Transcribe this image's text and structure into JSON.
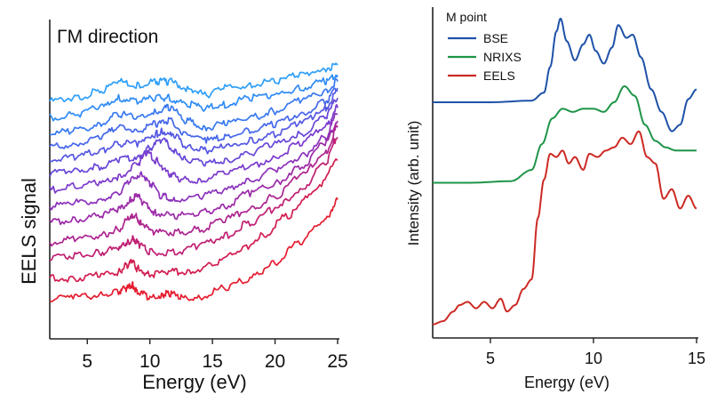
{
  "chart_data": [
    {
      "type": "line",
      "title": "ΓM direction",
      "xlabel": "Energy (eV)",
      "ylabel": "EELS signal",
      "xlim": [
        2,
        25
      ],
      "xticks": [
        5,
        10,
        15,
        20,
        25
      ],
      "yaxis_ticks_shown": false,
      "stacked_offset_curves": true,
      "colors": [
        "#2f9ff8",
        "#2f8cf5",
        "#3879f0",
        "#4467ea",
        "#5557e2",
        "#6848d8",
        "#7b3ccc",
        "#8c32bc",
        "#9c2aa8",
        "#ad2490",
        "#c01f72",
        "#d21d50",
        "#e51d30"
      ],
      "series": [
        {
          "x": [
            2,
            4,
            6,
            7.5,
            9,
            10.5,
            11.5,
            13,
            14.5,
            16,
            18,
            20,
            22,
            24,
            25
          ],
          "values": [
            70,
            71,
            73,
            76,
            75,
            76,
            76,
            74,
            72,
            74,
            75,
            76,
            78,
            80,
            81
          ]
        },
        {
          "x": [
            2,
            4,
            6,
            7.5,
            9,
            10.5,
            11.5,
            13,
            14.5,
            16,
            18,
            20,
            22,
            24,
            25
          ],
          "values": [
            65,
            66,
            68,
            71,
            70,
            71,
            71,
            69,
            68,
            69,
            71,
            72,
            74,
            76,
            78
          ]
        },
        {
          "x": [
            2,
            4,
            6,
            7.5,
            9,
            10.5,
            11.5,
            13,
            14.5,
            16,
            18,
            20,
            22,
            24,
            25
          ],
          "values": [
            60,
            61,
            63,
            66,
            65,
            67,
            68,
            64,
            62,
            63,
            65,
            67,
            70,
            73,
            76
          ]
        },
        {
          "x": [
            2,
            4,
            6,
            7.5,
            9,
            10.5,
            11.5,
            13,
            14.5,
            16,
            18,
            20,
            22,
            24,
            25
          ],
          "values": [
            56,
            57,
            59,
            62,
            61,
            63,
            64,
            60,
            58,
            59,
            61,
            63,
            66,
            70,
            74
          ]
        },
        {
          "x": [
            2,
            4,
            6,
            7.5,
            9,
            10.5,
            11,
            12,
            13,
            14.5,
            16,
            18,
            20,
            22,
            24,
            25
          ],
          "values": [
            52,
            53,
            55,
            57,
            57,
            60,
            61,
            59,
            56,
            55,
            56,
            58,
            60,
            63,
            68,
            73
          ]
        },
        {
          "x": [
            2,
            4,
            6,
            7.5,
            9,
            10,
            11,
            12,
            13,
            14.5,
            16,
            18,
            20,
            22,
            24,
            25
          ],
          "values": [
            48,
            49,
            50,
            52,
            53,
            56,
            58,
            55,
            52,
            51,
            52,
            54,
            57,
            60,
            65,
            71
          ]
        },
        {
          "x": [
            2,
            4,
            6,
            7.5,
            9,
            9.8,
            10.5,
            11.5,
            12.5,
            14,
            16,
            18,
            20,
            22,
            24,
            25
          ],
          "values": [
            43,
            44,
            45,
            47,
            51,
            54,
            52,
            48,
            46,
            46,
            48,
            50,
            53,
            57,
            62,
            68
          ]
        },
        {
          "x": [
            2,
            4,
            6,
            7.5,
            8.5,
            9.3,
            10,
            11,
            12,
            14,
            16,
            18,
            20,
            22,
            24,
            25
          ],
          "values": [
            38,
            39,
            40,
            42,
            46,
            48,
            45,
            41,
            40,
            41,
            43,
            46,
            49,
            53,
            59,
            66
          ]
        },
        {
          "x": [
            2,
            4,
            6,
            7.5,
            8.5,
            9,
            9.5,
            10.5,
            12,
            14,
            16,
            18,
            20,
            22,
            24,
            25
          ],
          "values": [
            33,
            34,
            35,
            37,
            40,
            41,
            39,
            36,
            35,
            36,
            38,
            42,
            45,
            50,
            57,
            64
          ]
        },
        {
          "x": [
            2,
            4,
            6,
            7.5,
            8.3,
            8.8,
            9.3,
            10.3,
            12,
            14,
            16,
            18,
            20,
            22,
            24,
            25
          ],
          "values": [
            27,
            28,
            29,
            31,
            34,
            35,
            33,
            30,
            30,
            31,
            34,
            37,
            41,
            47,
            54,
            62
          ]
        },
        {
          "x": [
            2,
            4,
            6,
            7.5,
            8.2,
            8.7,
            9.2,
            10,
            12,
            14,
            16,
            18,
            20,
            22,
            24,
            25
          ],
          "values": [
            22,
            23,
            24,
            25,
            27,
            28,
            26,
            24,
            24,
            26,
            29,
            33,
            37,
            43,
            51,
            59
          ]
        },
        {
          "x": [
            2,
            4,
            6,
            7.5,
            8.2,
            8.6,
            9,
            10,
            11.5,
            13,
            15,
            17,
            19,
            21,
            23,
            25
          ],
          "values": [
            16,
            16,
            17,
            18,
            20,
            21,
            19,
            17,
            18,
            18,
            20,
            24,
            29,
            35,
            42,
            52
          ]
        },
        {
          "x": [
            2,
            4,
            6,
            7.5,
            8.2,
            8.6,
            9,
            10,
            11,
            11.5,
            12.5,
            14,
            16,
            18,
            20,
            22,
            24,
            25
          ],
          "values": [
            10,
            10,
            11,
            12,
            13,
            14,
            12,
            10,
            11,
            11.5,
            10,
            10.5,
            13,
            16,
            21,
            27,
            34,
            40
          ]
        }
      ]
    },
    {
      "type": "line",
      "title": "M point",
      "xlabel": "Energy (eV)",
      "ylabel": "Intensity (arb. unit)",
      "xlim": [
        2.2,
        15
      ],
      "xticks": [
        5,
        10,
        15
      ],
      "yaxis_ticks_shown": false,
      "legend": "top-left",
      "series": [
        {
          "name": "BSE",
          "color": "#1f52a8",
          "x": [
            2.2,
            5,
            7,
            7.6,
            7.9,
            8.2,
            8.4,
            8.7,
            9.1,
            9.5,
            9.8,
            10.1,
            10.5,
            10.9,
            11.2,
            11.6,
            11.9,
            12.3,
            12.8,
            13.3,
            13.8,
            14.2,
            14.6,
            15
          ],
          "values": [
            71,
            71,
            71.5,
            74,
            82,
            93,
            97,
            90,
            84,
            89,
            92,
            87,
            83,
            88,
            95,
            91,
            92,
            85,
            75,
            68,
            62,
            64,
            72,
            75
          ]
        },
        {
          "name": "NRIXS",
          "color": "#1e9448",
          "x": [
            2.2,
            4,
            6,
            7,
            7.5,
            8,
            8.5,
            9,
            9.5,
            10,
            10.5,
            11,
            11.5,
            12,
            12.5,
            13,
            13.5,
            14,
            14.5,
            15
          ],
          "values": [
            46,
            46,
            46.5,
            50,
            58,
            66,
            69,
            68,
            69,
            69,
            68,
            71,
            76,
            73,
            64,
            59,
            57,
            56,
            56,
            56
          ]
        },
        {
          "name": "EELS",
          "color": "#cc2a24",
          "x": [
            2.2,
            2.7,
            3.2,
            3.5,
            3.9,
            4.3,
            4.7,
            5.1,
            5.5,
            5.8,
            6.2,
            6.6,
            7,
            7.3,
            7.6,
            7.9,
            8.2,
            8.5,
            8.8,
            9.1,
            9.5,
            9.8,
            10.2,
            10.6,
            11,
            11.4,
            11.8,
            12.2,
            12.6,
            13,
            13.4,
            13.8,
            14.2,
            14.6,
            15
          ],
          "values": [
            2,
            3,
            6,
            8,
            9,
            7,
            9,
            7,
            10,
            6,
            8,
            13,
            16,
            35,
            47,
            55,
            54,
            56,
            52,
            54,
            50,
            55,
            54,
            56,
            57,
            60,
            58,
            62,
            54,
            52,
            41,
            44,
            38,
            42,
            38
          ]
        }
      ]
    }
  ]
}
